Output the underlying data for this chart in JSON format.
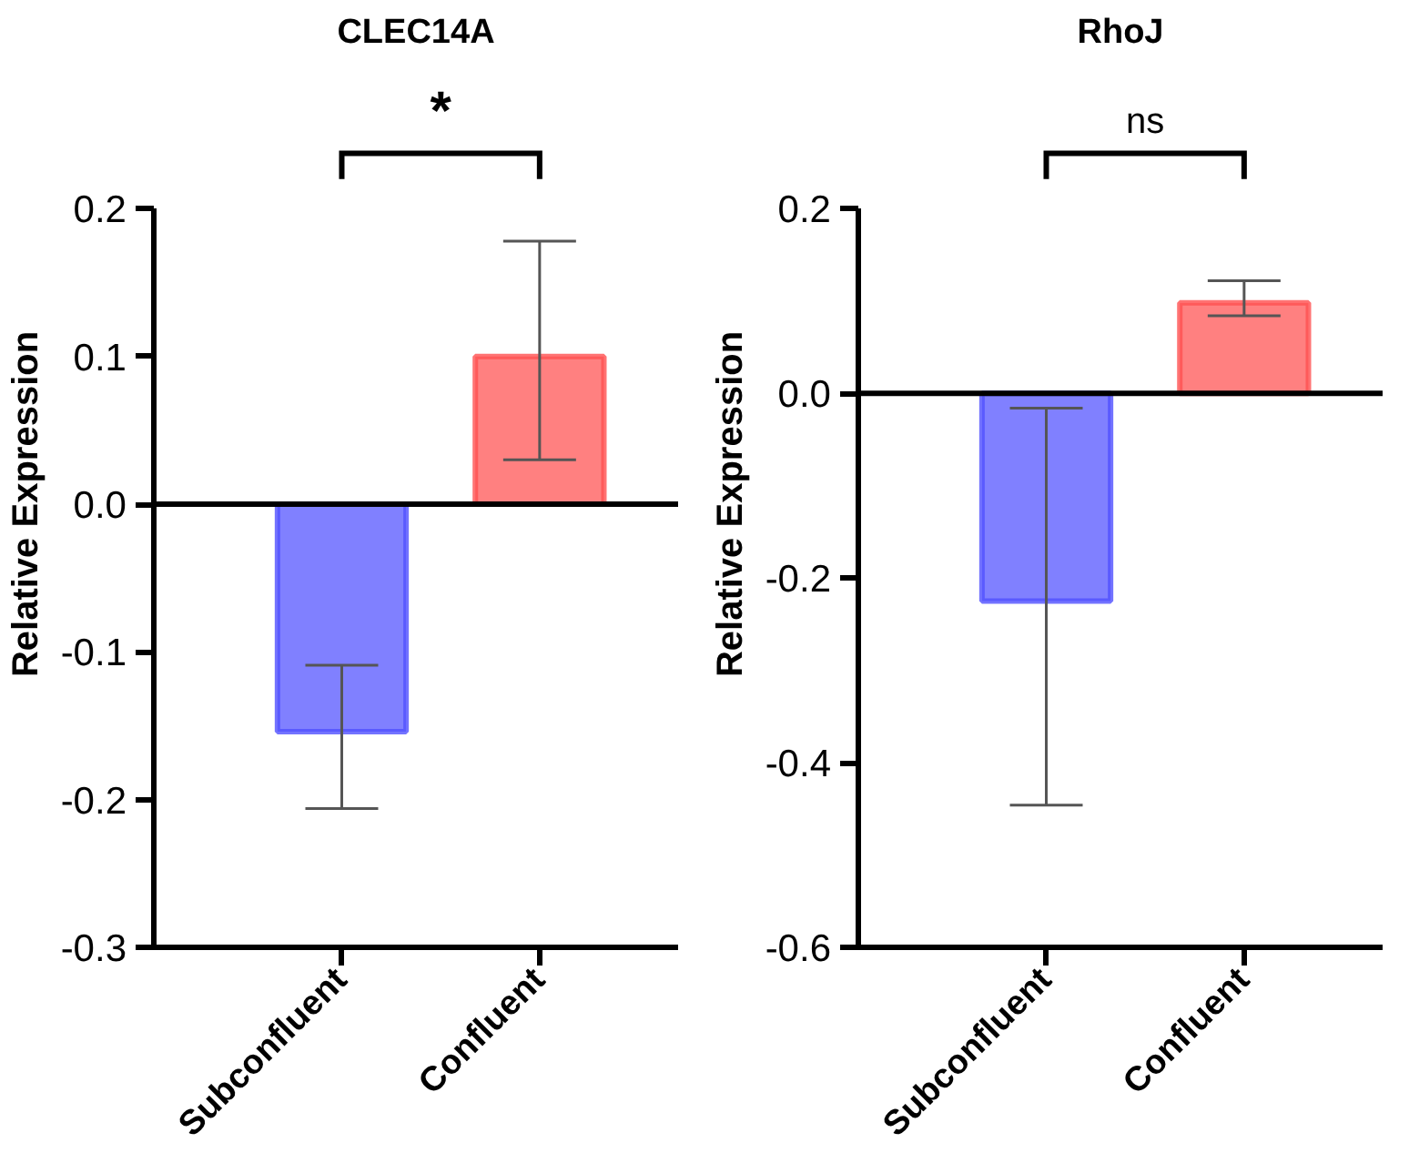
{
  "chart_data": [
    {
      "type": "bar",
      "title": "CLEC14A",
      "ylabel": "Relative Expression",
      "categories": [
        "Subconfluent",
        "Confluent"
      ],
      "values": [
        -0.154,
        0.1
      ],
      "colors": [
        "#8080ff",
        "#ff8080"
      ],
      "errors": [
        [
          -0.206,
          -0.109
        ],
        [
          0.03,
          0.178
        ]
      ],
      "ylim": [
        -0.3,
        0.2
      ],
      "yticks": [
        {
          "value": -0.3,
          "label": "-0.3"
        },
        {
          "value": -0.2,
          "label": "-0.2"
        },
        {
          "value": -0.1,
          "label": "-0.1"
        },
        {
          "value": 0.0,
          "label": "0.0"
        },
        {
          "value": 0.1,
          "label": "0.1"
        },
        {
          "value": 0.2,
          "label": "0.2"
        }
      ],
      "ref_lines": [
        {
          "axis": "y",
          "value": 0,
          "color": "#000000"
        }
      ],
      "annotations": [
        "*"
      ]
    },
    {
      "type": "bar",
      "title": "RhoJ",
      "ylabel": "Relative Expression",
      "categories": [
        "Subconfluent",
        "Confluent"
      ],
      "values": [
        -0.225,
        0.098
      ],
      "colors": [
        "#8080ff",
        "#ff8080"
      ],
      "errors": [
        [
          -0.446,
          -0.016
        ],
        [
          0.084,
          0.122
        ]
      ],
      "ylim": [
        -0.6,
        0.2
      ],
      "yticks": [
        {
          "value": -0.6,
          "label": "-0.6"
        },
        {
          "value": -0.4,
          "label": "-0.4"
        },
        {
          "value": -0.2,
          "label": "-0.2"
        },
        {
          "value": 0.0,
          "label": "0.0"
        },
        {
          "value": 0.2,
          "label": "0.2"
        }
      ],
      "ref_lines": [
        {
          "axis": "y",
          "value": 0,
          "color": "#000000"
        }
      ],
      "annotations": [
        "ns"
      ]
    }
  ]
}
